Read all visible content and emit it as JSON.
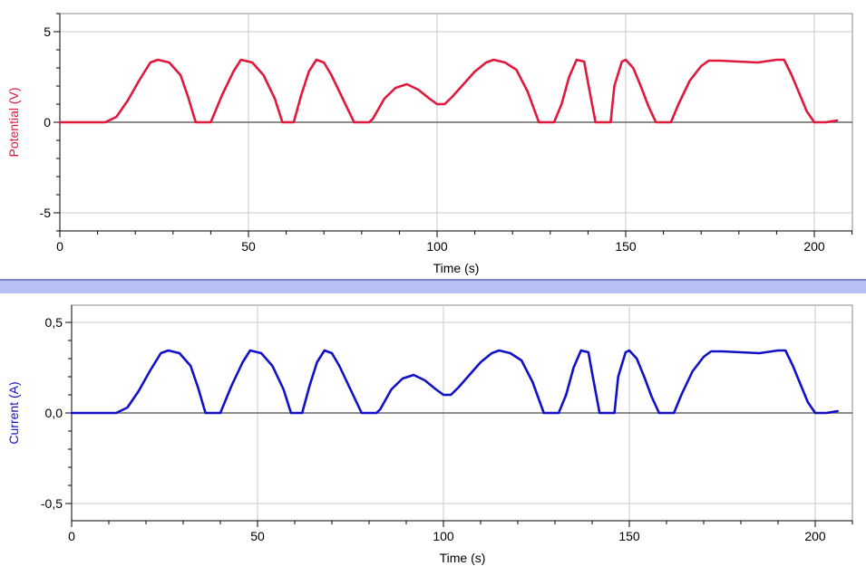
{
  "charts": [
    {
      "type": "line",
      "ylabel": "Potential (V)",
      "xlabel": "Time (s)",
      "xlim": [
        0,
        210
      ],
      "ylim": [
        -6,
        6
      ],
      "x_ticks": [
        "0",
        "50",
        "100",
        "150",
        "200"
      ],
      "y_ticks": [
        "5",
        "0",
        "-5"
      ],
      "color": "#e0183c",
      "grid": true,
      "series": [
        {
          "x": [
            0,
            12,
            15,
            18,
            21,
            24,
            26,
            29,
            32,
            34,
            36,
            38,
            40,
            43,
            46,
            48,
            51,
            54,
            57,
            59,
            61,
            62,
            64,
            66,
            68,
            70,
            72,
            75,
            78,
            80,
            82,
            83,
            86,
            89,
            92,
            95,
            98,
            100,
            102,
            104,
            107,
            110,
            113,
            115,
            118,
            121,
            124,
            127,
            130,
            131,
            133,
            135,
            137,
            139,
            140,
            142,
            144,
            146,
            147,
            149,
            150,
            152,
            154,
            156,
            158,
            160,
            162,
            164,
            167,
            170,
            172,
            175,
            180,
            185,
            190,
            192,
            194,
            196,
            198,
            200,
            203,
            206
          ],
          "y": [
            0,
            0,
            0.3,
            1.2,
            2.3,
            3.3,
            3.45,
            3.3,
            2.6,
            1.4,
            0,
            0,
            0,
            1.5,
            2.8,
            3.45,
            3.3,
            2.6,
            1.3,
            0,
            0,
            0,
            1.5,
            2.8,
            3.45,
            3.3,
            2.6,
            1.3,
            0,
            0,
            0,
            0.2,
            1.3,
            1.9,
            2.1,
            1.8,
            1.3,
            1.0,
            1.0,
            1.4,
            2.1,
            2.8,
            3.3,
            3.45,
            3.3,
            2.9,
            1.7,
            0,
            0,
            0,
            1.0,
            2.5,
            3.45,
            3.35,
            2.2,
            0,
            0,
            0,
            2.0,
            3.35,
            3.45,
            3.0,
            2.0,
            0.9,
            0,
            0,
            0,
            1.0,
            2.3,
            3.1,
            3.4,
            3.4,
            3.35,
            3.3,
            3.45,
            3.45,
            2.6,
            1.6,
            0.6,
            0,
            0,
            0.1
          ]
        }
      ]
    },
    {
      "type": "line",
      "ylabel": "Current (A)",
      "xlabel": "Time (s)",
      "xlim": [
        0,
        210
      ],
      "ylim": [
        -0.6,
        0.6
      ],
      "x_ticks": [
        "0",
        "50",
        "100",
        "150",
        "200"
      ],
      "y_ticks": [
        "0,5",
        "0,0",
        "-0,5"
      ],
      "color": "#1010c8",
      "grid": true,
      "series": [
        {
          "x": [
            0,
            12,
            15,
            18,
            21,
            24,
            26,
            29,
            32,
            34,
            36,
            38,
            40,
            43,
            46,
            48,
            51,
            54,
            57,
            59,
            61,
            62,
            64,
            66,
            68,
            70,
            72,
            75,
            78,
            80,
            82,
            83,
            86,
            89,
            92,
            95,
            98,
            100,
            102,
            104,
            107,
            110,
            113,
            115,
            118,
            121,
            124,
            127,
            130,
            131,
            133,
            135,
            137,
            139,
            140,
            142,
            144,
            146,
            147,
            149,
            150,
            152,
            154,
            156,
            158,
            160,
            162,
            164,
            167,
            170,
            172,
            175,
            180,
            185,
            190,
            192,
            194,
            196,
            198,
            200,
            203,
            206
          ],
          "y": [
            0,
            0,
            0.03,
            0.12,
            0.23,
            0.33,
            0.345,
            0.33,
            0.26,
            0.14,
            0,
            0,
            0,
            0.15,
            0.28,
            0.345,
            0.33,
            0.26,
            0.13,
            0,
            0,
            0,
            0.15,
            0.28,
            0.345,
            0.33,
            0.26,
            0.13,
            0,
            0,
            0,
            0.02,
            0.13,
            0.19,
            0.21,
            0.18,
            0.13,
            0.1,
            0.1,
            0.14,
            0.21,
            0.28,
            0.33,
            0.345,
            0.33,
            0.29,
            0.17,
            0,
            0,
            0,
            0.1,
            0.25,
            0.345,
            0.335,
            0.22,
            0,
            0,
            0,
            0.2,
            0.335,
            0.345,
            0.3,
            0.2,
            0.09,
            0,
            0,
            0,
            0.1,
            0.23,
            0.31,
            0.34,
            0.34,
            0.335,
            0.33,
            0.345,
            0.345,
            0.26,
            0.16,
            0.06,
            0,
            0,
            0.01
          ]
        }
      ]
    }
  ]
}
